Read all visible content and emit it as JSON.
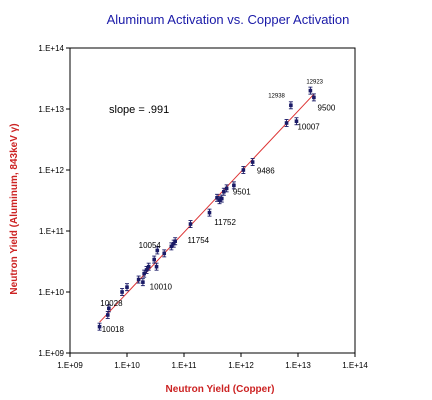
{
  "chart_data": {
    "type": "scatter",
    "title": "Aluminum Activation vs. Copper Activation",
    "xlabel": "Neutron Yield (Copper)",
    "ylabel": "Neutron Yield (Aluminum, 843keV  γ)",
    "x_scale": "log",
    "y_scale": "log",
    "xlim": [
      1000000000.0,
      100000000000000.0
    ],
    "ylim": [
      1000000000.0,
      100000000000000.0
    ],
    "x_ticks": [
      "1.E+09",
      "1.E+10",
      "1.E+11",
      "1.E+12",
      "1.E+13",
      "1.E+14"
    ],
    "y_ticks": [
      "1.E+09",
      "1.E+10",
      "1.E+11",
      "1.E+12",
      "1.E+13",
      "1.E+14"
    ],
    "grid": false,
    "legend": "none",
    "annotation_slope": "slope = .991",
    "fit_line": {
      "x": [
        3300000000.0,
        19000000000000.0
      ],
      "y": [
        3200000000.0,
        17500000000000.0
      ],
      "color": "#dd3333"
    },
    "marker_color": "#1a1a66",
    "points": [
      {
        "x": 3300000000.0,
        "y": 2700000000.0
      },
      {
        "x": 4600000000.0,
        "y": 4200000000.0
      },
      {
        "x": 4800000000.0,
        "y": 5400000000.0
      },
      {
        "x": 8200000000.0,
        "y": 10000000000.0
      },
      {
        "x": 10000000000.0,
        "y": 12000000000.0
      },
      {
        "x": 16000000000.0,
        "y": 16000000000.0
      },
      {
        "x": 19000000000.0,
        "y": 14500000000.0
      },
      {
        "x": 20000000000.0,
        "y": 20000000000.0
      },
      {
        "x": 22000000000.0,
        "y": 23000000000.0
      },
      {
        "x": 24000000000.0,
        "y": 26000000000.0
      },
      {
        "x": 30000000000.0,
        "y": 34000000000.0
      },
      {
        "x": 33000000000.0,
        "y": 26000000000.0
      },
      {
        "x": 34000000000.0,
        "y": 48000000000.0
      },
      {
        "x": 45000000000.0,
        "y": 43000000000.0
      },
      {
        "x": 60000000000.0,
        "y": 56000000000.0
      },
      {
        "x": 66000000000.0,
        "y": 62000000000.0
      },
      {
        "x": 70000000000.0,
        "y": 68000000000.0
      },
      {
        "x": 130000000000.0,
        "y": 130000000000.0
      },
      {
        "x": 280000000000.0,
        "y": 200000000000.0
      },
      {
        "x": 380000000000.0,
        "y": 350000000000.0
      },
      {
        "x": 420000000000.0,
        "y": 320000000000.0
      },
      {
        "x": 460000000000.0,
        "y": 340000000000.0
      },
      {
        "x": 500000000000.0,
        "y": 440000000000.0
      },
      {
        "x": 560000000000.0,
        "y": 500000000000.0
      },
      {
        "x": 750000000000.0,
        "y": 560000000000.0
      },
      {
        "x": 1100000000000.0,
        "y": 1000000000000.0
      },
      {
        "x": 1600000000000.0,
        "y": 1350000000000.0
      },
      {
        "x": 6300000000000.0,
        "y": 5900000000000.0
      },
      {
        "x": 7500000000000.0,
        "y": 11500000000000.0
      },
      {
        "x": 9400000000000.0,
        "y": 6300000000000.0
      },
      {
        "x": 16500000000000.0,
        "y": 20000000000000.0
      },
      {
        "x": 19000000000000.0,
        "y": 15500000000000.0
      }
    ],
    "labels": [
      {
        "text": "10028",
        "x": 3400000000.0,
        "y": 5900000000.0,
        "size": "normal"
      },
      {
        "text": "10018",
        "x": 3600000000.0,
        "y": 2200000000.0,
        "size": "normal"
      },
      {
        "text": "10010",
        "x": 25000000000.0,
        "y": 11000000000.0,
        "size": "normal"
      },
      {
        "text": "10054",
        "x": 16000000000.0,
        "y": 53000000000.0,
        "size": "normal"
      },
      {
        "text": "11754",
        "x": 115000000000.0,
        "y": 63000000000.0,
        "size": "normal"
      },
      {
        "text": "11752",
        "x": 340000000000.0,
        "y": 125000000000.0,
        "size": "normal"
      },
      {
        "text": "9501",
        "x": 720000000000.0,
        "y": 400000000000.0,
        "size": "normal"
      },
      {
        "text": "9486",
        "x": 1900000000000.0,
        "y": 880000000000.0,
        "size": "normal"
      },
      {
        "text": "10007",
        "x": 9800000000000.0,
        "y": 4600000000000.0,
        "size": "normal"
      },
      {
        "text": "9500",
        "x": 22000000000000.0,
        "y": 9500000000000.0,
        "size": "normal"
      },
      {
        "text": "12938",
        "x": 3000000000000.0,
        "y": 15500000000000.0,
        "size": "small"
      },
      {
        "text": "12923",
        "x": 14000000000000.0,
        "y": 26000000000000.0,
        "size": "small"
      }
    ]
  }
}
